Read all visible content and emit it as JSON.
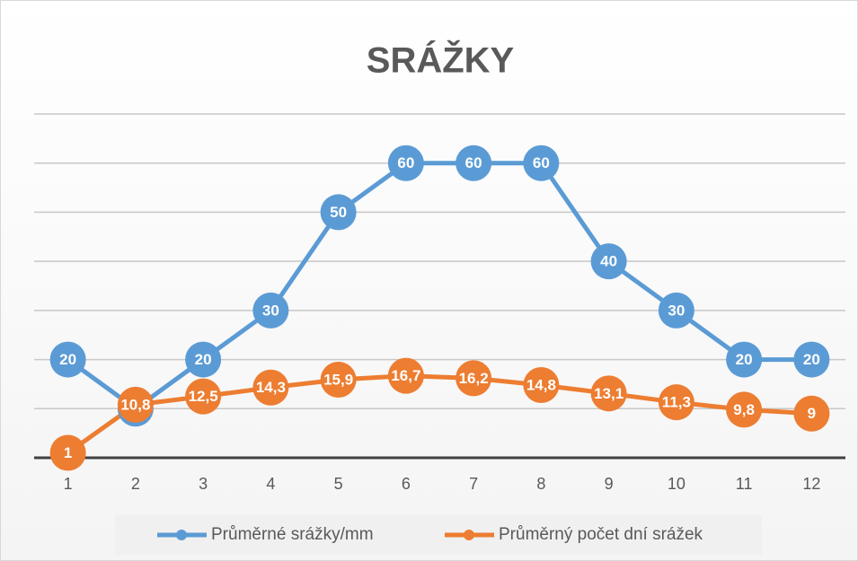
{
  "chart_data": {
    "type": "line",
    "title": "SRÁŽKY",
    "categories": [
      "1",
      "2",
      "3",
      "4",
      "5",
      "6",
      "7",
      "8",
      "9",
      "10",
      "11",
      "12"
    ],
    "series": [
      {
        "name": "Průměrné srážky/mm",
        "color": "#5b9bd5",
        "values": [
          20,
          10,
          20,
          30,
          50,
          60,
          60,
          60,
          40,
          30,
          20,
          20
        ]
      },
      {
        "name": "Průměrný počet dní srážek",
        "color": "#ed7d31",
        "values": [
          1,
          10.8,
          12.5,
          14.3,
          15.9,
          16.7,
          16.2,
          14.8,
          13.1,
          11.3,
          9.8,
          9
        ],
        "value_labels": [
          "1",
          "10,8",
          "12,5",
          "14,3",
          "15,9",
          "16,7",
          "16,2",
          "14,8",
          "13,1",
          "11,3",
          "9,8",
          "9"
        ]
      }
    ],
    "ylim": [
      0,
      70
    ],
    "yticks": [
      0,
      10,
      20,
      30,
      40,
      50,
      60,
      70
    ],
    "grid": true,
    "legend": "bottom"
  }
}
